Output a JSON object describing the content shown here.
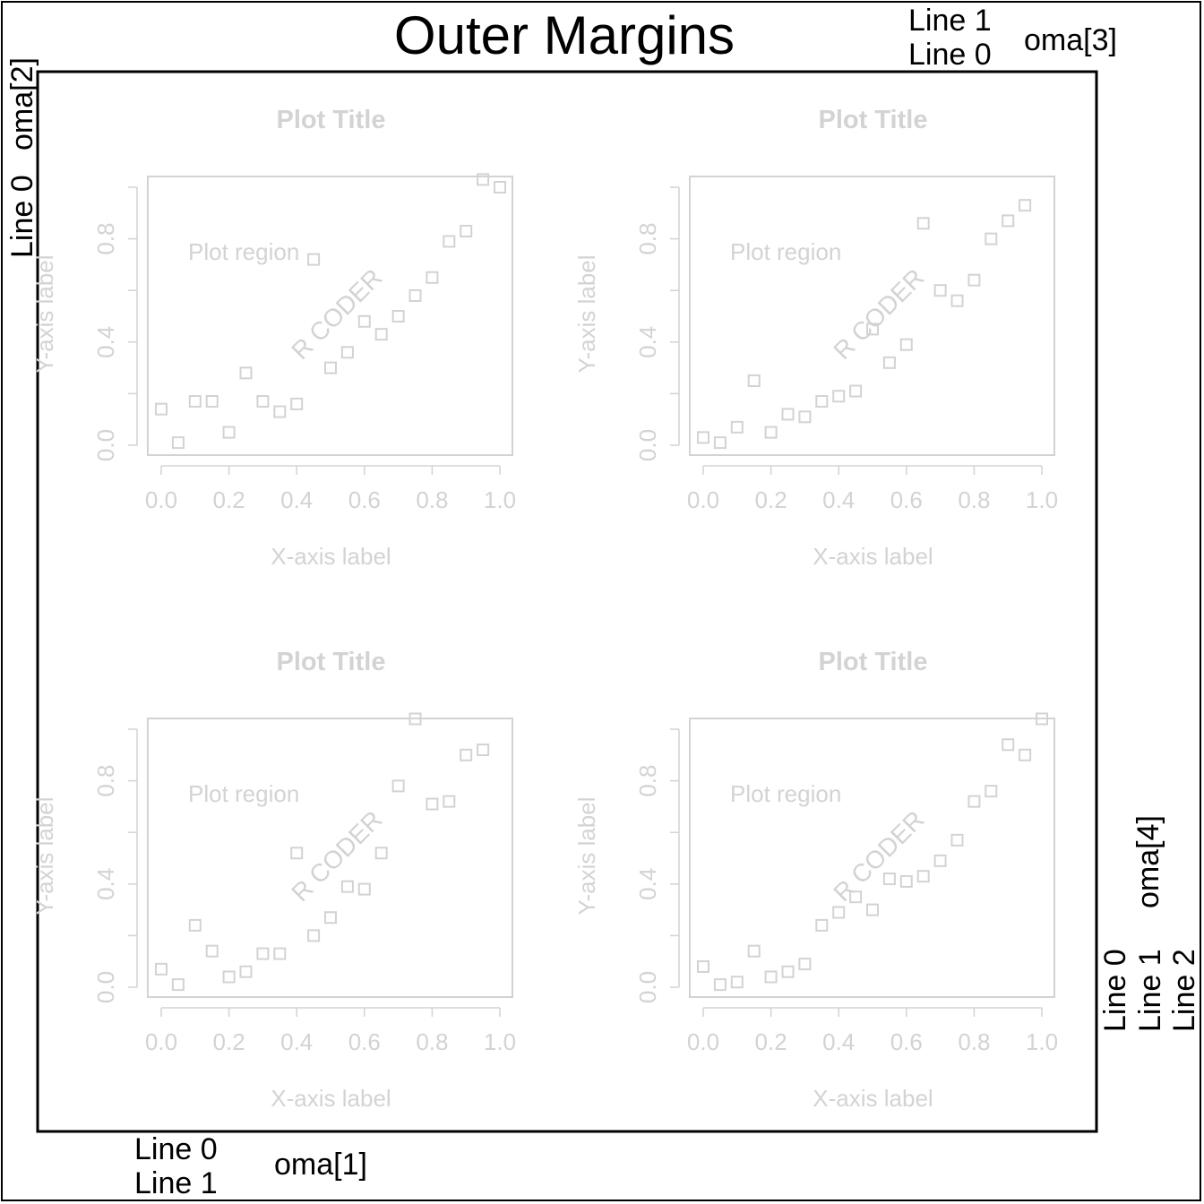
{
  "title": "Outer Margins",
  "colors": {
    "ink": "#000000",
    "faint": "#d3d3d3",
    "background": "#ffffff"
  },
  "oma": {
    "side1": {
      "label": "oma[1]",
      "lines": [
        "Line 0",
        "Line 1"
      ]
    },
    "side2": {
      "label": "oma[2]",
      "lines": [
        "Line 0"
      ]
    },
    "side3": {
      "label": "oma[3]",
      "lines": [
        "Line 0",
        "Line 1"
      ]
    },
    "side4": {
      "label": "oma[4]",
      "lines": [
        "Line 0",
        "Line 1",
        "Line 2"
      ]
    }
  },
  "chart_data": [
    {
      "type": "scatter",
      "title": "Plot Title",
      "xlabel": "X-axis label",
      "ylabel": "Y-axis label",
      "annotations": [
        "Plot region",
        "R CODER"
      ],
      "marker": "open-square",
      "xlim": [
        -0.04,
        1.04
      ],
      "ylim": [
        -0.04,
        1.04
      ],
      "xticks": [
        "0.0",
        "0.2",
        "0.4",
        "0.6",
        "0.8",
        "1.0"
      ],
      "yticks": [
        "0.0",
        "0.4",
        "0.8"
      ],
      "x": [
        0.0,
        0.05,
        0.1,
        0.15,
        0.2,
        0.25,
        0.3,
        0.35,
        0.4,
        0.45,
        0.5,
        0.55,
        0.6,
        0.65,
        0.7,
        0.75,
        0.8,
        0.85,
        0.9,
        0.95,
        1.0
      ],
      "y": [
        0.14,
        0.01,
        0.17,
        0.17,
        0.05,
        0.28,
        0.17,
        0.13,
        0.16,
        0.72,
        0.3,
        0.36,
        0.48,
        0.43,
        0.5,
        0.58,
        0.65,
        0.79,
        0.83,
        1.03,
        1.0
      ]
    },
    {
      "type": "scatter",
      "title": "Plot Title",
      "xlabel": "X-axis label",
      "ylabel": "Y-axis label",
      "annotations": [
        "Plot region",
        "R CODER"
      ],
      "marker": "open-square",
      "xlim": [
        -0.04,
        1.04
      ],
      "ylim": [
        -0.04,
        1.04
      ],
      "xticks": [
        "0.0",
        "0.2",
        "0.4",
        "0.6",
        "0.8",
        "1.0"
      ],
      "yticks": [
        "0.0",
        "0.4",
        "0.8"
      ],
      "x": [
        0.0,
        0.05,
        0.1,
        0.15,
        0.2,
        0.25,
        0.3,
        0.35,
        0.4,
        0.45,
        0.5,
        0.55,
        0.6,
        0.65,
        0.7,
        0.75,
        0.8,
        0.85,
        0.9,
        0.95
      ],
      "y": [
        0.03,
        0.01,
        0.07,
        0.25,
        0.05,
        0.12,
        0.11,
        0.17,
        0.19,
        0.21,
        0.45,
        0.32,
        0.39,
        0.86,
        0.6,
        0.56,
        0.64,
        0.8,
        0.87,
        0.93
      ]
    },
    {
      "type": "scatter",
      "title": "Plot Title",
      "xlabel": "X-axis label",
      "ylabel": "Y-axis label",
      "annotations": [
        "Plot region",
        "R CODER"
      ],
      "marker": "open-square",
      "xlim": [
        -0.04,
        1.04
      ],
      "ylim": [
        -0.04,
        1.04
      ],
      "xticks": [
        "0.0",
        "0.2",
        "0.4",
        "0.6",
        "0.8",
        "1.0"
      ],
      "yticks": [
        "0.0",
        "0.4",
        "0.8"
      ],
      "x": [
        0.0,
        0.05,
        0.1,
        0.15,
        0.2,
        0.25,
        0.3,
        0.35,
        0.4,
        0.45,
        0.5,
        0.55,
        0.6,
        0.65,
        0.7,
        0.75,
        0.8,
        0.85,
        0.9,
        0.95
      ],
      "y": [
        0.07,
        0.01,
        0.24,
        0.14,
        0.04,
        0.06,
        0.13,
        0.13,
        0.52,
        0.2,
        0.27,
        0.39,
        0.38,
        0.52,
        0.78,
        1.04,
        0.71,
        0.72,
        0.9,
        0.92
      ]
    },
    {
      "type": "scatter",
      "title": "Plot Title",
      "xlabel": "X-axis label",
      "ylabel": "Y-axis label",
      "annotations": [
        "Plot region",
        "R CODER"
      ],
      "marker": "open-square",
      "xlim": [
        -0.04,
        1.04
      ],
      "ylim": [
        -0.04,
        1.04
      ],
      "xticks": [
        "0.0",
        "0.2",
        "0.4",
        "0.6",
        "0.8",
        "1.0"
      ],
      "yticks": [
        "0.0",
        "0.4",
        "0.8"
      ],
      "x": [
        0.0,
        0.05,
        0.1,
        0.15,
        0.2,
        0.25,
        0.3,
        0.35,
        0.4,
        0.45,
        0.5,
        0.55,
        0.6,
        0.65,
        0.7,
        0.75,
        0.8,
        0.85,
        0.9,
        0.95,
        1.0
      ],
      "y": [
        0.08,
        0.01,
        0.02,
        0.14,
        0.04,
        0.06,
        0.09,
        0.24,
        0.29,
        0.35,
        0.3,
        0.42,
        0.41,
        0.43,
        0.49,
        0.57,
        0.72,
        0.76,
        0.94,
        0.9,
        1.04
      ]
    }
  ]
}
